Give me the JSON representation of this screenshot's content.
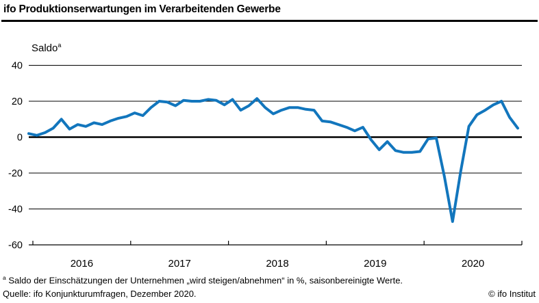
{
  "header": {
    "title": "ifo Produktionserwartungen im Verarbeitenden Gewerbe"
  },
  "chart": {
    "unit_label": "Saldo",
    "unit_superscript": "a"
  },
  "chart_data": {
    "type": "line",
    "title": "ifo Produktionserwartungen im Verarbeitenden Gewerbe",
    "ylabel": "Saldo",
    "ylim": [
      -60,
      40
    ],
    "yticks": [
      40,
      20,
      0,
      -20,
      -40,
      -60
    ],
    "grid": true,
    "legend": "none",
    "x_start": "2015-12",
    "x_end": "2020-12",
    "frequency": "monthly",
    "x_year_labels": [
      "2016",
      "2017",
      "2018",
      "2019",
      "2020"
    ],
    "line_color": "#1276bd",
    "series": [
      {
        "name": "Produktionserwartungen",
        "color": "#1276bd",
        "values": [
          2,
          1,
          2.5,
          5,
          10,
          4.5,
          7,
          6,
          8,
          7,
          9,
          10.5,
          11.5,
          13.5,
          12,
          16.5,
          20,
          19.5,
          17.5,
          20.5,
          20,
          20,
          21,
          20.5,
          18,
          21,
          15,
          17.5,
          21.5,
          16.5,
          13,
          15,
          16.5,
          16.5,
          15.5,
          15,
          9,
          8.5,
          7,
          5.5,
          3.5,
          5.5,
          -1.5,
          -7,
          -2.5,
          -7.5,
          -8.5,
          -8.5,
          -8,
          -1,
          -0.5,
          -22,
          -47,
          -19,
          6,
          12.5,
          15,
          18,
          20,
          11,
          5
        ]
      }
    ]
  },
  "footer": {
    "footnote_marker": "a",
    "footnote_text": " Saldo der Einschätzungen der Unternehmen „wird steigen/abnehmen“ in %, saisonbereinigte Werte.",
    "source": "Quelle: ifo Konjunkturumfragen, Dezember 2020.",
    "credit": "© ifo Institut"
  }
}
